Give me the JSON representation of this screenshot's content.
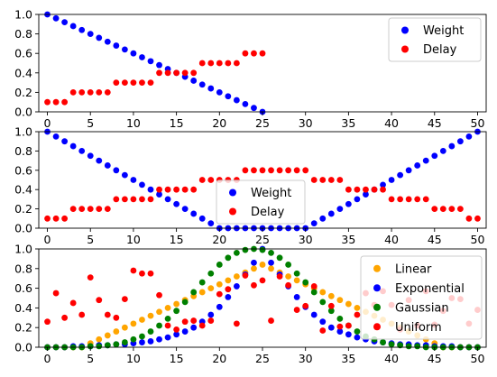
{
  "chart_data": [
    {
      "type": "scatter",
      "xlim": [
        -1,
        51
      ],
      "ylim": [
        0,
        1
      ],
      "xticks": [
        "0",
        "5",
        "10",
        "15",
        "20",
        "25",
        "30",
        "35",
        "40",
        "45",
        "50"
      ],
      "yticks": [
        "0.0",
        "0.2",
        "0.4",
        "0.6",
        "0.8",
        "1.0"
      ],
      "grid": false,
      "legend_position": "top-right",
      "series": [
        {
          "name": "Weight",
          "color": "#0000ff",
          "x": [
            0,
            1,
            2,
            3,
            4,
            5,
            6,
            7,
            8,
            9,
            10,
            11,
            12,
            13,
            14,
            15,
            16,
            17,
            18,
            19,
            20,
            21,
            22,
            23,
            24,
            25
          ],
          "y": [
            1.0,
            0.96,
            0.92,
            0.88,
            0.84,
            0.8,
            0.76,
            0.72,
            0.68,
            0.64,
            0.6,
            0.56,
            0.52,
            0.48,
            0.44,
            0.4,
            0.36,
            0.32,
            0.28,
            0.24,
            0.2,
            0.16,
            0.12,
            0.08,
            0.04,
            0.0
          ]
        },
        {
          "name": "Delay",
          "color": "#ff0000",
          "x": [
            0,
            1,
            2,
            3,
            4,
            5,
            6,
            7,
            8,
            9,
            10,
            11,
            12,
            13,
            14,
            15,
            16,
            17,
            18,
            19,
            20,
            21,
            22,
            23,
            24,
            25
          ],
          "y": [
            0.1,
            0.1,
            0.1,
            0.2,
            0.2,
            0.2,
            0.2,
            0.2,
            0.3,
            0.3,
            0.3,
            0.3,
            0.3,
            0.4,
            0.4,
            0.4,
            0.4,
            0.4,
            0.5,
            0.5,
            0.5,
            0.5,
            0.5,
            0.6,
            0.6,
            0.6
          ]
        }
      ]
    },
    {
      "type": "scatter",
      "xlim": [
        -1,
        51
      ],
      "ylim": [
        0,
        1
      ],
      "xticks": [
        "0",
        "5",
        "10",
        "15",
        "20",
        "25",
        "30",
        "35",
        "40",
        "45",
        "50"
      ],
      "yticks": [
        "0.0",
        "0.2",
        "0.4",
        "0.6",
        "0.8",
        "1.0"
      ],
      "grid": false,
      "legend_position": "bottom-center",
      "series": [
        {
          "name": "Weight",
          "color": "#0000ff",
          "x": [
            0,
            1,
            2,
            3,
            4,
            5,
            6,
            7,
            8,
            9,
            10,
            11,
            12,
            13,
            14,
            15,
            16,
            17,
            18,
            19,
            20,
            21,
            22,
            23,
            24,
            25,
            26,
            27,
            28,
            29,
            30,
            31,
            32,
            33,
            34,
            35,
            36,
            37,
            38,
            39,
            40,
            41,
            42,
            43,
            44,
            45,
            46,
            47,
            48,
            49,
            50
          ],
          "y": [
            1.0,
            0.95,
            0.9,
            0.85,
            0.8,
            0.75,
            0.7,
            0.65,
            0.6,
            0.55,
            0.5,
            0.45,
            0.4,
            0.35,
            0.3,
            0.25,
            0.2,
            0.15,
            0.1,
            0.05,
            0.0,
            0.0,
            0.0,
            0.0,
            0.0,
            0.0,
            0.0,
            0.0,
            0.0,
            0.0,
            0.0,
            0.05,
            0.1,
            0.15,
            0.2,
            0.25,
            0.3,
            0.35,
            0.4,
            0.45,
            0.5,
            0.55,
            0.6,
            0.65,
            0.7,
            0.75,
            0.8,
            0.85,
            0.9,
            0.95,
            1.0
          ]
        },
        {
          "name": "Delay",
          "color": "#ff0000",
          "x": [
            0,
            1,
            2,
            3,
            4,
            5,
            6,
            7,
            8,
            9,
            10,
            11,
            12,
            13,
            14,
            15,
            16,
            17,
            18,
            19,
            20,
            21,
            22,
            23,
            24,
            25,
            26,
            27,
            28,
            29,
            30,
            31,
            32,
            33,
            34,
            35,
            36,
            37,
            38,
            39,
            40,
            41,
            42,
            43,
            44,
            45,
            46,
            47,
            48,
            49,
            50
          ],
          "y": [
            0.1,
            0.1,
            0.1,
            0.2,
            0.2,
            0.2,
            0.2,
            0.2,
            0.3,
            0.3,
            0.3,
            0.3,
            0.3,
            0.4,
            0.4,
            0.4,
            0.4,
            0.4,
            0.5,
            0.5,
            0.5,
            0.5,
            0.5,
            0.6,
            0.6,
            0.6,
            0.6,
            0.6,
            0.6,
            0.6,
            0.6,
            0.5,
            0.5,
            0.5,
            0.5,
            0.4,
            0.4,
            0.4,
            0.4,
            0.4,
            0.3,
            0.3,
            0.3,
            0.3,
            0.3,
            0.2,
            0.2,
            0.2,
            0.2,
            0.1,
            0.1
          ]
        }
      ]
    },
    {
      "type": "scatter",
      "xlim": [
        -1,
        51
      ],
      "ylim": [
        0,
        1
      ],
      "xticks": [
        "0",
        "5",
        "10",
        "15",
        "20",
        "25",
        "30",
        "35",
        "40",
        "45",
        "50"
      ],
      "yticks": [
        "0.0",
        "0.2",
        "0.4",
        "0.6",
        "0.8",
        "1.0"
      ],
      "grid": false,
      "legend_position": "right",
      "series": [
        {
          "name": "Linear",
          "color": "#ffa500",
          "x": [
            0,
            1,
            2,
            3,
            4,
            5,
            6,
            7,
            8,
            9,
            10,
            11,
            12,
            13,
            14,
            15,
            16,
            17,
            18,
            19,
            20,
            21,
            22,
            23,
            24,
            25,
            26,
            27,
            28,
            29,
            30,
            31,
            32,
            33,
            34,
            35,
            36,
            37,
            38,
            39,
            40,
            41,
            42,
            43,
            44,
            45,
            46,
            47,
            48,
            49,
            50
          ],
          "y": [
            0,
            0,
            0,
            0,
            0,
            0.04,
            0.08,
            0.12,
            0.16,
            0.2,
            0.24,
            0.28,
            0.32,
            0.36,
            0.4,
            0.44,
            0.48,
            0.52,
            0.56,
            0.6,
            0.64,
            0.68,
            0.72,
            0.76,
            0.8,
            0.84,
            0.8,
            0.76,
            0.72,
            0.68,
            0.64,
            0.6,
            0.56,
            0.52,
            0.48,
            0.44,
            0.4,
            0.36,
            0.32,
            0.28,
            0.24,
            0.2,
            0.16,
            0.12,
            0.08,
            0.04,
            0,
            0,
            0,
            0,
            0
          ]
        },
        {
          "name": "Exponential",
          "color": "#0000ff",
          "x": [
            0,
            1,
            2,
            3,
            4,
            5,
            6,
            7,
            8,
            9,
            10,
            11,
            12,
            13,
            14,
            15,
            16,
            17,
            18,
            19,
            20,
            21,
            22,
            23,
            24,
            25,
            26,
            27,
            28,
            29,
            30,
            31,
            32,
            33,
            34,
            35,
            36,
            37,
            38,
            39,
            40,
            41,
            42,
            43,
            44,
            45,
            46,
            47,
            48,
            49,
            50
          ],
          "y": [
            0.0,
            0.0,
            0.0,
            0.01,
            0.01,
            0.01,
            0.02,
            0.02,
            0.03,
            0.03,
            0.04,
            0.05,
            0.06,
            0.08,
            0.1,
            0.13,
            0.16,
            0.2,
            0.26,
            0.33,
            0.41,
            0.51,
            0.62,
            0.74,
            0.86,
            1.0,
            0.86,
            0.74,
            0.62,
            0.51,
            0.41,
            0.33,
            0.26,
            0.2,
            0.16,
            0.13,
            0.1,
            0.08,
            0.06,
            0.05,
            0.04,
            0.03,
            0.03,
            0.02,
            0.02,
            0.01,
            0.01,
            0.01,
            0.0,
            0.0,
            0.0
          ]
        },
        {
          "name": "Gaussian",
          "color": "#008000",
          "x": [
            0,
            1,
            2,
            3,
            4,
            5,
            6,
            7,
            8,
            9,
            10,
            11,
            12,
            13,
            14,
            15,
            16,
            17,
            18,
            19,
            20,
            21,
            22,
            23,
            24,
            25,
            26,
            27,
            28,
            29,
            30,
            31,
            32,
            33,
            34,
            35,
            36,
            37,
            38,
            39,
            40,
            41,
            42,
            43,
            44,
            45,
            46,
            47,
            48,
            49,
            50
          ],
          "y": [
            0.0,
            0.0,
            0.0,
            0.0,
            0.0,
            0.01,
            0.01,
            0.02,
            0.03,
            0.05,
            0.08,
            0.11,
            0.16,
            0.22,
            0.29,
            0.37,
            0.46,
            0.56,
            0.66,
            0.75,
            0.84,
            0.91,
            0.96,
            0.99,
            1.0,
            0.99,
            0.96,
            0.91,
            0.84,
            0.75,
            0.66,
            0.56,
            0.46,
            0.37,
            0.29,
            0.22,
            0.16,
            0.11,
            0.08,
            0.05,
            0.03,
            0.02,
            0.01,
            0.01,
            0.0,
            0.0,
            0.0,
            0.0,
            0.0,
            0.0,
            0.0
          ]
        },
        {
          "name": "Uniform",
          "color": "#ff0000",
          "x": [
            0,
            1,
            2,
            3,
            4,
            5,
            6,
            7,
            8,
            9,
            10,
            11,
            12,
            13,
            14,
            15,
            16,
            17,
            18,
            19,
            20,
            21,
            22,
            23,
            24,
            25,
            26,
            27,
            28,
            29,
            30,
            31,
            32,
            33,
            34,
            35,
            36,
            37,
            38,
            39,
            40,
            41,
            42,
            43,
            44,
            45,
            46,
            47,
            48,
            49,
            50
          ],
          "y": [
            0.26,
            0.55,
            0.3,
            0.45,
            0.33,
            0.71,
            0.48,
            0.33,
            0.3,
            0.49,
            0.78,
            0.75,
            0.75,
            0.53,
            0.22,
            0.18,
            0.26,
            0.27,
            0.22,
            0.27,
            0.54,
            0.59,
            0.24,
            0.73,
            0.63,
            0.68,
            0.27,
            0.72,
            0.63,
            0.38,
            0.42,
            0.62,
            0.17,
            0.42,
            0.21,
            0.22,
            0.33,
            0.55,
            0.43,
            0.57,
            0.43,
            0.18,
            0.48,
            0.22,
            0.57,
            0.23,
            0.37,
            0.5,
            0.49,
            0.24,
            0.38
          ]
        }
      ]
    }
  ]
}
